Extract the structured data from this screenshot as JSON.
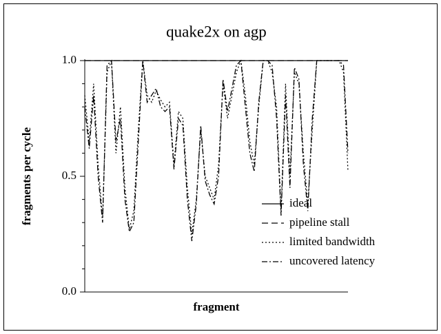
{
  "chart_data": {
    "type": "line",
    "title": "quake2x on agp",
    "xlabel": "fragment",
    "ylabel": "fragments per cycle",
    "ylim": [
      0,
      1
    ],
    "yticks": [
      {
        "value": 0,
        "label": "0.0"
      },
      {
        "value": 0.5,
        "label": "0.5"
      },
      {
        "value": 1,
        "label": "1.0"
      }
    ],
    "yminorticks": [
      0.1,
      0.2,
      0.3,
      0.4,
      0.6,
      0.7,
      0.8,
      0.9
    ],
    "legend": "lower right",
    "series": [
      {
        "name": "ideal",
        "color": "#000000",
        "line_style": "solid",
        "values": [
          1,
          1,
          1,
          1,
          1,
          1,
          1,
          1,
          1,
          1,
          1,
          1,
          1,
          1,
          1,
          1,
          1,
          1,
          1,
          1,
          1,
          1,
          1,
          1,
          1,
          1,
          1,
          1,
          1,
          1,
          1,
          1,
          1,
          1,
          1,
          1,
          1,
          1,
          1,
          1,
          1,
          1,
          1,
          1,
          1,
          1,
          1,
          1,
          1,
          1,
          1,
          1,
          1,
          1,
          1,
          1,
          1,
          1,
          1,
          1
        ]
      },
      {
        "name": "pipeline stall",
        "color": "#000000",
        "line_style": "dashed",
        "values": [
          1,
          1,
          1,
          1,
          1,
          1,
          1,
          1,
          1,
          1,
          1,
          1,
          1,
          1,
          1,
          1,
          1,
          1,
          1,
          1,
          1,
          1,
          1,
          1,
          1,
          1,
          1,
          1,
          1,
          1,
          1,
          1,
          1,
          1,
          1,
          1,
          1,
          1,
          1,
          1,
          1,
          1,
          1,
          1,
          1,
          1,
          1,
          1,
          1,
          1,
          1,
          1,
          1,
          1,
          1,
          1,
          1,
          1,
          1,
          1
        ]
      },
      {
        "name": "limited bandwidth",
        "color": "#000000",
        "line_style": "dotted",
        "values": [
          0.85,
          0.65,
          0.9,
          0.55,
          0.32,
          0.95,
          1,
          0.6,
          0.8,
          0.45,
          0.27,
          0.35,
          0.7,
          1,
          0.85,
          0.82,
          0.87,
          0.83,
          0.8,
          0.82,
          0.55,
          0.78,
          0.75,
          0.45,
          0.25,
          0.4,
          0.7,
          0.5,
          0.45,
          0.4,
          0.55,
          0.9,
          0.75,
          0.85,
          0.95,
          1,
          0.85,
          0.65,
          0.55,
          0.8,
          1,
          1,
          0.95,
          0.8,
          0.35,
          0.9,
          0.5,
          0.95,
          0.9,
          0.6,
          0.38,
          0.7,
          1,
          1,
          1,
          1,
          1,
          1,
          0.95,
          0.52
        ]
      },
      {
        "name": "uncovered latency",
        "color": "#000000",
        "line_style": "dashdot",
        "values": [
          0.8,
          0.62,
          0.85,
          0.5,
          0.3,
          0.98,
          1,
          0.65,
          0.75,
          0.4,
          0.26,
          0.3,
          0.65,
          1,
          0.82,
          0.85,
          0.88,
          0.8,
          0.78,
          0.8,
          0.53,
          0.75,
          0.72,
          0.4,
          0.22,
          0.38,
          0.72,
          0.48,
          0.42,
          0.38,
          0.5,
          0.92,
          0.78,
          0.88,
          0.98,
          1,
          0.8,
          0.6,
          0.52,
          0.82,
          1,
          1,
          0.98,
          0.75,
          0.33,
          0.85,
          0.45,
          0.97,
          0.92,
          0.55,
          0.35,
          0.75,
          1,
          1,
          1,
          1,
          1,
          1,
          0.98,
          0.6
        ]
      }
    ]
  }
}
